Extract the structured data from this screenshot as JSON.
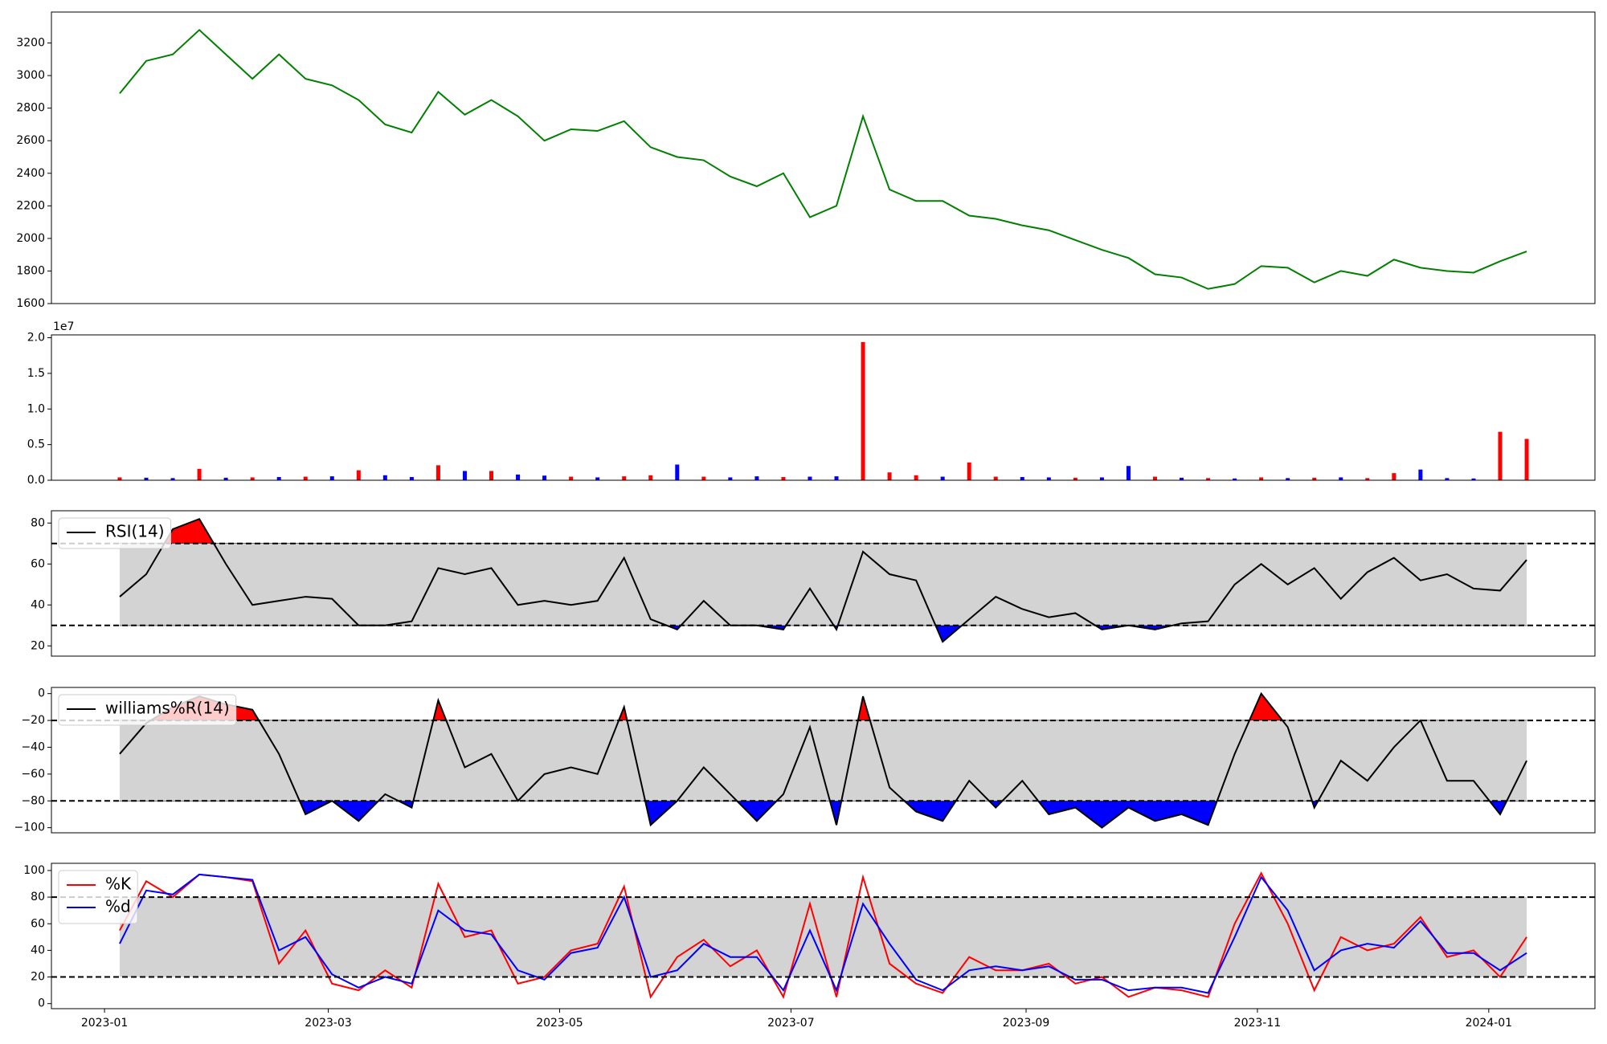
{
  "chart_data": [
    {
      "type": "line",
      "x": [
        "2023-01-05",
        "2023-01-12",
        "2023-01-19",
        "2023-01-26",
        "2023-02-02",
        "2023-02-09",
        "2023-02-16",
        "2023-02-23",
        "2023-03-02",
        "2023-03-09",
        "2023-03-16",
        "2023-03-23",
        "2023-03-30",
        "2023-04-06",
        "2023-04-13",
        "2023-04-20",
        "2023-04-27",
        "2023-05-04",
        "2023-05-11",
        "2023-05-18",
        "2023-05-25",
        "2023-06-01",
        "2023-06-08",
        "2023-06-15",
        "2023-06-22",
        "2023-06-29",
        "2023-07-06",
        "2023-07-13",
        "2023-07-20",
        "2023-07-27",
        "2023-08-03",
        "2023-08-10",
        "2023-08-17",
        "2023-08-24",
        "2023-08-31",
        "2023-09-07",
        "2023-09-14",
        "2023-09-21",
        "2023-09-28",
        "2023-10-05",
        "2023-10-12",
        "2023-10-19",
        "2023-10-26",
        "2023-11-02",
        "2023-11-09",
        "2023-11-16",
        "2023-11-23",
        "2023-11-30",
        "2023-12-07",
        "2023-12-14",
        "2023-12-21",
        "2023-12-28",
        "2024-01-04",
        "2024-01-11"
      ],
      "series": [
        {
          "color": "green",
          "values": [
            2890,
            3090,
            3130,
            3280,
            3130,
            2980,
            3130,
            2980,
            2940,
            2850,
            2700,
            2650,
            2900,
            2760,
            2850,
            2750,
            2600,
            2670,
            2660,
            2720,
            2560,
            2500,
            2480,
            2380,
            2320,
            2400,
            2130,
            2200,
            2750,
            2300,
            2230,
            2230,
            2140,
            2120,
            2080,
            2050,
            1990,
            1930,
            1880,
            1780,
            1760,
            1690,
            1720,
            1830,
            1820,
            1730,
            1800,
            1770,
            1870,
            1820,
            1800,
            1790,
            1860,
            1920
          ]
        }
      ],
      "xlim": [
        "2022-12-18",
        "2024-01-29"
      ],
      "ylim": [
        1600,
        3390
      ],
      "yticks": [
        1600,
        1800,
        2000,
        2200,
        2400,
        2600,
        2800,
        3000,
        3200
      ]
    },
    {
      "type": "bar",
      "x": [
        "2023-01-05",
        "2023-01-12",
        "2023-01-19",
        "2023-01-26",
        "2023-02-02",
        "2023-02-09",
        "2023-02-16",
        "2023-02-23",
        "2023-03-02",
        "2023-03-09",
        "2023-03-16",
        "2023-03-23",
        "2023-03-30",
        "2023-04-06",
        "2023-04-13",
        "2023-04-20",
        "2023-04-27",
        "2023-05-04",
        "2023-05-11",
        "2023-05-18",
        "2023-05-25",
        "2023-06-01",
        "2023-06-08",
        "2023-06-15",
        "2023-06-22",
        "2023-06-29",
        "2023-07-06",
        "2023-07-13",
        "2023-07-20",
        "2023-07-27",
        "2023-08-03",
        "2023-08-10",
        "2023-08-17",
        "2023-08-24",
        "2023-08-31",
        "2023-09-07",
        "2023-09-14",
        "2023-09-21",
        "2023-09-28",
        "2023-10-05",
        "2023-10-12",
        "2023-10-19",
        "2023-10-26",
        "2023-11-02",
        "2023-11-09",
        "2023-11-16",
        "2023-11-23",
        "2023-11-30",
        "2023-12-07",
        "2023-12-14",
        "2023-12-21",
        "2023-12-28",
        "2024-01-04",
        "2024-01-11"
      ],
      "values": [
        400000,
        350000,
        300000,
        1600000,
        350000,
        400000,
        450000,
        500000,
        550000,
        1400000,
        700000,
        450000,
        2100000,
        1300000,
        1300000,
        800000,
        650000,
        500000,
        400000,
        550000,
        700000,
        2200000,
        500000,
        400000,
        550000,
        450000,
        500000,
        550000,
        19400000,
        1100000,
        700000,
        500000,
        2500000,
        500000,
        450000,
        400000,
        350000,
        400000,
        2000000,
        500000,
        350000,
        300000,
        250000,
        400000,
        300000,
        350000,
        400000,
        300000,
        1000000,
        1500000,
        300000,
        250000,
        6800000,
        5800000
      ],
      "colors": [
        "red",
        "blue",
        "blue",
        "red",
        "blue",
        "red",
        "blue",
        "red",
        "blue",
        "red",
        "blue",
        "blue",
        "red",
        "blue",
        "red",
        "blue",
        "blue",
        "red",
        "blue",
        "red",
        "red",
        "blue",
        "red",
        "blue",
        "blue",
        "red",
        "blue",
        "blue",
        "red",
        "red",
        "red",
        "blue",
        "red",
        "red",
        "blue",
        "blue",
        "red",
        "blue",
        "blue",
        "red",
        "blue",
        "red",
        "blue",
        "red",
        "blue",
        "red",
        "blue",
        "red",
        "red",
        "blue",
        "blue",
        "blue",
        "red",
        "red"
      ],
      "xlim": [
        "2022-12-18",
        "2024-01-29"
      ],
      "ylim": [
        0,
        20400000
      ],
      "yticks": [
        {
          "value": 0,
          "label": "0.0"
        },
        {
          "value": 5000000,
          "label": "0.5"
        },
        {
          "value": 10000000,
          "label": "1.0"
        },
        {
          "value": 15000000,
          "label": "1.5"
        },
        {
          "value": 20000000,
          "label": "2.0"
        }
      ],
      "offset_text": "1e7"
    },
    {
      "type": "line",
      "x": [
        "2023-01-05",
        "2023-01-12",
        "2023-01-19",
        "2023-01-26",
        "2023-02-02",
        "2023-02-09",
        "2023-02-16",
        "2023-02-23",
        "2023-03-02",
        "2023-03-09",
        "2023-03-16",
        "2023-03-23",
        "2023-03-30",
        "2023-04-06",
        "2023-04-13",
        "2023-04-20",
        "2023-04-27",
        "2023-05-04",
        "2023-05-11",
        "2023-05-18",
        "2023-05-25",
        "2023-06-01",
        "2023-06-08",
        "2023-06-15",
        "2023-06-22",
        "2023-06-29",
        "2023-07-06",
        "2023-07-13",
        "2023-07-20",
        "2023-07-27",
        "2023-08-03",
        "2023-08-10",
        "2023-08-17",
        "2023-08-24",
        "2023-08-31",
        "2023-09-07",
        "2023-09-14",
        "2023-09-21",
        "2023-09-28",
        "2023-10-05",
        "2023-10-12",
        "2023-10-19",
        "2023-10-26",
        "2023-11-02",
        "2023-11-09",
        "2023-11-16",
        "2023-11-23",
        "2023-11-30",
        "2023-12-07",
        "2023-12-14",
        "2023-12-21",
        "2023-12-28",
        "2024-01-04",
        "2024-01-11"
      ],
      "series": [
        {
          "name": "RSI(14)",
          "color": "black",
          "values": [
            44,
            55,
            77,
            82,
            60,
            40,
            42,
            44,
            43,
            30,
            30,
            32,
            58,
            55,
            58,
            40,
            42,
            40,
            42,
            63,
            33,
            28,
            42,
            30,
            30,
            28,
            48,
            28,
            66,
            55,
            52,
            22,
            33,
            44,
            38,
            34,
            36,
            28,
            30,
            28,
            31,
            32,
            50,
            60,
            50,
            58,
            43,
            56,
            63,
            52,
            55,
            48,
            47,
            62
          ]
        }
      ],
      "xlim": [
        "2022-12-18",
        "2024-01-29"
      ],
      "ylim": [
        15,
        86
      ],
      "yticks": [
        20,
        40,
        60,
        80
      ],
      "hlines": [
        30,
        70
      ],
      "band_color": "lightgray",
      "fill_above_color": "red",
      "fill_below_color": "blue",
      "legend": "upper left"
    },
    {
      "type": "line",
      "x": [
        "2023-01-05",
        "2023-01-12",
        "2023-01-19",
        "2023-01-26",
        "2023-02-02",
        "2023-02-09",
        "2023-02-16",
        "2023-02-23",
        "2023-03-02",
        "2023-03-09",
        "2023-03-16",
        "2023-03-23",
        "2023-03-30",
        "2023-04-06",
        "2023-04-13",
        "2023-04-20",
        "2023-04-27",
        "2023-05-04",
        "2023-05-11",
        "2023-05-18",
        "2023-05-25",
        "2023-06-01",
        "2023-06-08",
        "2023-06-15",
        "2023-06-22",
        "2023-06-29",
        "2023-07-06",
        "2023-07-13",
        "2023-07-20",
        "2023-07-27",
        "2023-08-03",
        "2023-08-10",
        "2023-08-17",
        "2023-08-24",
        "2023-08-31",
        "2023-09-07",
        "2023-09-14",
        "2023-09-21",
        "2023-09-28",
        "2023-10-05",
        "2023-10-12",
        "2023-10-19",
        "2023-10-26",
        "2023-11-02",
        "2023-11-09",
        "2023-11-16",
        "2023-11-23",
        "2023-11-30",
        "2023-12-07",
        "2023-12-14",
        "2023-12-21",
        "2023-12-28",
        "2024-01-04",
        "2024-01-11"
      ],
      "series": [
        {
          "name": "williams%R(14)",
          "color": "black",
          "values": [
            -45,
            -22,
            -10,
            -2,
            -8,
            -12,
            -45,
            -90,
            -80,
            -95,
            -75,
            -85,
            -5,
            -55,
            -45,
            -80,
            -60,
            -55,
            -60,
            -10,
            -98,
            -80,
            -55,
            -75,
            -95,
            -75,
            -25,
            -98,
            -2,
            -70,
            -88,
            -95,
            -65,
            -85,
            -65,
            -90,
            -85,
            -100,
            -85,
            -95,
            -90,
            -98,
            -45,
            0,
            -25,
            -85,
            -50,
            -65,
            -40,
            -20,
            -65,
            -65,
            -90,
            -50
          ]
        }
      ],
      "xlim": [
        "2022-12-18",
        "2024-01-29"
      ],
      "ylim": [
        -103.8,
        4.6
      ],
      "yticks": [
        {
          "value": -100,
          "label": "−100"
        },
        {
          "value": -80,
          "label": "−80"
        },
        {
          "value": -60,
          "label": "−60"
        },
        {
          "value": -40,
          "label": "−40"
        },
        {
          "value": -20,
          "label": "−20"
        },
        0
      ],
      "hlines": [
        -80,
        -20
      ],
      "band_color": "lightgray",
      "fill_above_color": "red",
      "fill_below_color": "blue",
      "legend": "upper left"
    },
    {
      "type": "line",
      "x": [
        "2023-01-05",
        "2023-01-12",
        "2023-01-19",
        "2023-01-26",
        "2023-02-02",
        "2023-02-09",
        "2023-02-16",
        "2023-02-23",
        "2023-03-02",
        "2023-03-09",
        "2023-03-16",
        "2023-03-23",
        "2023-03-30",
        "2023-04-06",
        "2023-04-13",
        "2023-04-20",
        "2023-04-27",
        "2023-05-04",
        "2023-05-11",
        "2023-05-18",
        "2023-05-25",
        "2023-06-01",
        "2023-06-08",
        "2023-06-15",
        "2023-06-22",
        "2023-06-29",
        "2023-07-06",
        "2023-07-13",
        "2023-07-20",
        "2023-07-27",
        "2023-08-03",
        "2023-08-10",
        "2023-08-17",
        "2023-08-24",
        "2023-08-31",
        "2023-09-07",
        "2023-09-14",
        "2023-09-21",
        "2023-09-28",
        "2023-10-05",
        "2023-10-12",
        "2023-10-19",
        "2023-10-26",
        "2023-11-02",
        "2023-11-09",
        "2023-11-16",
        "2023-11-23",
        "2023-11-30",
        "2023-12-07",
        "2023-12-14",
        "2023-12-21",
        "2023-12-28",
        "2024-01-04",
        "2024-01-11"
      ],
      "series": [
        {
          "name": "%K",
          "color": "red",
          "values": [
            55,
            92,
            80,
            97,
            95,
            92,
            30,
            55,
            15,
            10,
            25,
            12,
            90,
            50,
            55,
            15,
            20,
            40,
            45,
            88,
            5,
            35,
            48,
            28,
            40,
            5,
            75,
            5,
            95,
            30,
            15,
            8,
            35,
            25,
            25,
            30,
            15,
            20,
            5,
            12,
            10,
            5,
            60,
            98,
            60,
            10,
            50,
            40,
            45,
            65,
            35,
            40,
            20,
            50
          ]
        },
        {
          "name": "%d",
          "color": "blue",
          "values": [
            45,
            85,
            82,
            97,
            95,
            93,
            40,
            50,
            22,
            12,
            20,
            15,
            70,
            55,
            52,
            25,
            18,
            38,
            42,
            80,
            20,
            25,
            45,
            35,
            35,
            10,
            55,
            10,
            75,
            45,
            18,
            10,
            25,
            28,
            25,
            28,
            18,
            18,
            10,
            12,
            12,
            8,
            50,
            95,
            70,
            25,
            40,
            45,
            42,
            62,
            38,
            38,
            25,
            38
          ]
        }
      ],
      "xlim": [
        "2022-12-18",
        "2024-01-29"
      ],
      "ylim": [
        -3.8,
        105.4
      ],
      "yticks": [
        0,
        20,
        40,
        60,
        80,
        100
      ],
      "xticks": [
        "2023-01",
        "2023-03",
        "2023-05",
        "2023-07",
        "2023-09",
        "2023-11",
        "2024-01"
      ],
      "hlines": [
        20,
        80
      ],
      "band_color": "lightgray",
      "legend": "upper left"
    }
  ]
}
